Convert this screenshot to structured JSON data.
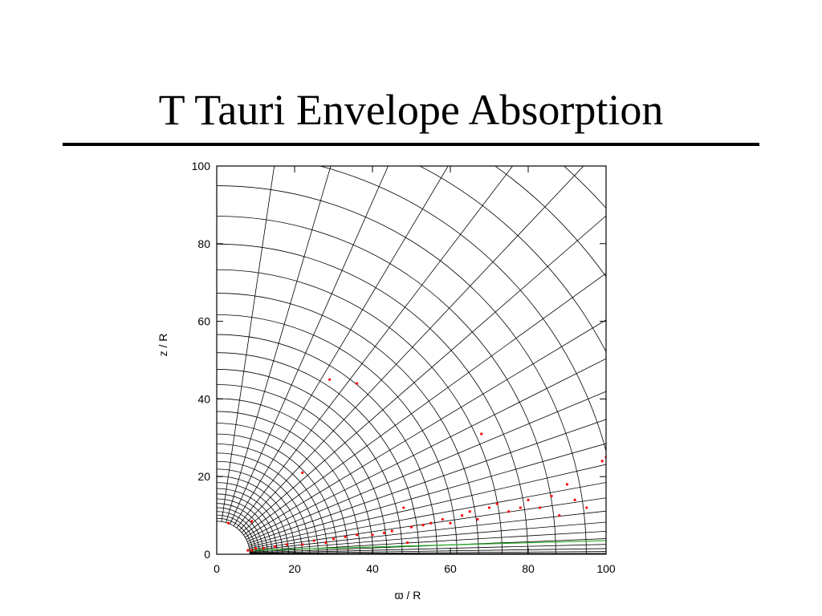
{
  "chart_data": {
    "type": "scatter",
    "title": "T Tauri Envelope Absorption",
    "x_label": "ϖ / R",
    "y_label": "z / R",
    "x": [
      8,
      9,
      10,
      12,
      15,
      18,
      22,
      25,
      28,
      30,
      33,
      36,
      40,
      43,
      45,
      49,
      50,
      53,
      55,
      58,
      60,
      63,
      65,
      67,
      70,
      72,
      75,
      78,
      80,
      83,
      86,
      88,
      90,
      92,
      95,
      99,
      100,
      3,
      29,
      36,
      68,
      22,
      48,
      9
    ],
    "y": [
      1,
      1,
      1.5,
      1.5,
      2,
      2.5,
      2.5,
      3.5,
      3,
      4,
      4.5,
      5,
      5,
      5.5,
      6,
      3,
      7,
      7.5,
      8,
      9,
      8,
      10,
      11,
      9,
      12,
      13,
      11,
      12,
      14,
      12,
      15,
      10,
      18,
      14,
      12,
      24,
      25,
      8,
      45,
      44,
      31,
      21,
      12,
      8.5
    ],
    "color": "#ff0000",
    "xlim": [
      0,
      100
    ],
    "ylim": [
      0,
      100
    ],
    "xticks": [
      0,
      20,
      40,
      60,
      80,
      100
    ],
    "yticks": [
      0,
      20,
      40,
      60,
      80,
      100
    ]
  }
}
